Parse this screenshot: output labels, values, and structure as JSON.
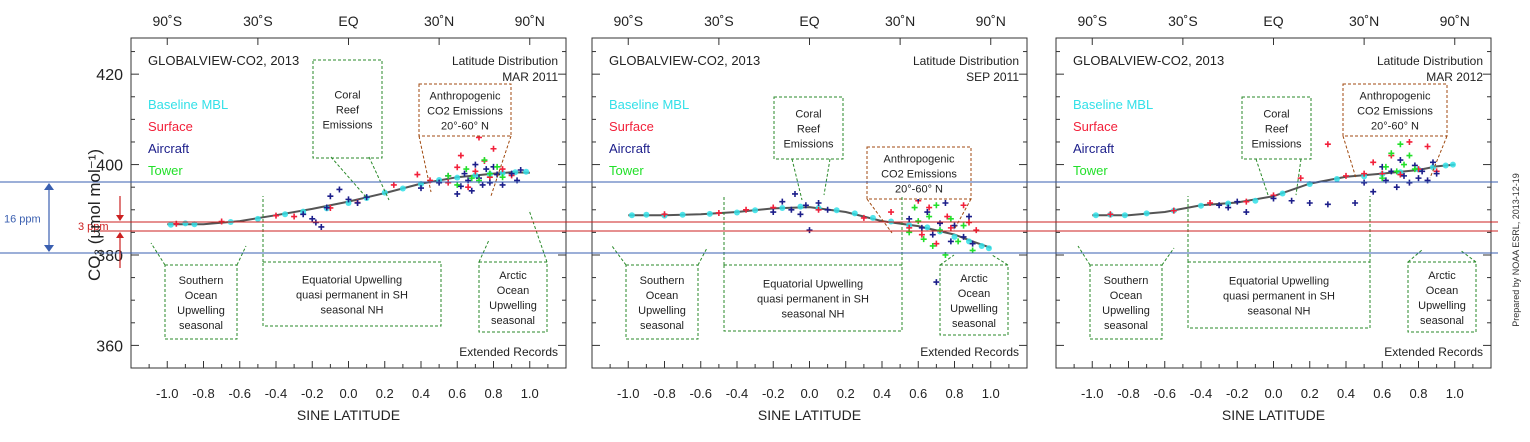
{
  "figure": {
    "ylabel": "CO₂ (µmol mol⁻¹)",
    "credit": "Prepared by NOAA ESRL, 2013-12-19",
    "colors": {
      "baseline": "#33e0e8",
      "surface": "#f2203a",
      "aircraft": "#1c1e8a",
      "tower": "#22e02a",
      "curve": "#555555",
      "green_box": "#2a8a2a",
      "brown_box": "#a04a10",
      "guide_blue": "#3a5fb0",
      "guide_red": "#cc2020"
    },
    "guides": {
      "ppm16": "16 ppm",
      "ppm3": "3 ppm"
    }
  },
  "chart_data": [
    {
      "type": "scatter",
      "title": "GLOBALVIEW-CO2, 2013",
      "dist_title": "Latitude Distribution",
      "month": "MAR 2011",
      "footer": "Extended Records",
      "xlabel": "SINE LATITUDE",
      "xlim": [
        -1.2,
        1.2
      ],
      "ylim": [
        355,
        428
      ],
      "xticks": [
        "-1.0",
        "-0.8",
        "-0.6",
        "-0.4",
        "-0.2",
        "0.0",
        "0.2",
        "0.4",
        "0.6",
        "0.8",
        "1.0"
      ],
      "yticks": [
        "360",
        "380",
        "400",
        "420"
      ],
      "top_ticks": [
        "90˚S",
        "30˚S",
        "EQ",
        "30˚N",
        "90˚N"
      ],
      "legend": [
        "Baseline MBL",
        "Surface",
        "Aircraft",
        "Tower"
      ],
      "curve": {
        "x": [
          -1.0,
          -0.8,
          -0.6,
          -0.4,
          -0.2,
          0.0,
          0.2,
          0.4,
          0.6,
          0.8,
          0.9,
          1.0
        ],
        "y": [
          386.8,
          386.8,
          387.5,
          388.8,
          390.2,
          391.8,
          393.7,
          395.8,
          397.2,
          398.0,
          398.3,
          398.2
        ]
      },
      "series": [
        {
          "name": "Baseline MBL",
          "x": [
            -0.98,
            -0.9,
            -0.85,
            -0.65,
            -0.5,
            -0.35,
            -0.25,
            -0.12,
            0.0,
            0.1,
            0.2,
            0.3,
            0.4,
            0.5,
            0.6,
            0.7,
            0.78,
            0.85,
            0.92,
            0.98
          ],
          "y": [
            386.7,
            387.0,
            386.8,
            387.3,
            388.0,
            389.0,
            389.6,
            390.3,
            391.5,
            392.6,
            393.8,
            394.7,
            395.7,
            396.6,
            397.1,
            397.6,
            397.9,
            398.1,
            398.3,
            398.4
          ]
        },
        {
          "name": "Surface",
          "x": [
            -0.95,
            -0.7,
            -0.4,
            -0.3,
            -0.1,
            0.05,
            0.25,
            0.38,
            0.45,
            0.55,
            0.6,
            0.62,
            0.66,
            0.7,
            0.72,
            0.75,
            0.78,
            0.8,
            0.85,
            0.9
          ],
          "y": [
            386.9,
            387.4,
            388.7,
            388.5,
            390.4,
            391.6,
            395.5,
            397.8,
            396.5,
            396.0,
            399.4,
            402.0,
            395.0,
            398.5,
            406.0,
            400.8,
            397.2,
            403.5,
            399.0,
            397.6
          ]
        },
        {
          "name": "Aircraft",
          "x": [
            -0.25,
            -0.2,
            -0.18,
            -0.15,
            -0.12,
            -0.1,
            -0.05,
            0.0,
            0.05,
            0.1,
            0.4,
            0.5,
            0.55,
            0.6,
            0.62,
            0.64,
            0.66,
            0.68,
            0.7,
            0.72,
            0.74,
            0.76,
            0.78,
            0.8,
            0.82,
            0.85,
            0.9,
            0.93,
            0.95
          ],
          "y": [
            389.0,
            388.0,
            387.2,
            386.2,
            390.5,
            393.0,
            394.5,
            392.3,
            391.5,
            392.8,
            394.8,
            396.0,
            397.5,
            393.5,
            395.2,
            398.0,
            396.5,
            394.2,
            400.0,
            397.0,
            395.5,
            399.0,
            396.0,
            399.5,
            397.8,
            395.5,
            398.0,
            396.5,
            398.8
          ]
        },
        {
          "name": "Tower",
          "x": [
            0.55,
            0.6,
            0.65,
            0.68,
            0.72,
            0.75,
            0.78,
            0.82,
            0.85
          ],
          "y": [
            397.5,
            395.5,
            399.0,
            397.0,
            396.5,
            401.0,
            398.0,
            399.5,
            397.2
          ]
        }
      ],
      "annotations": [
        {
          "id": "coral",
          "lines": [
            "Coral",
            "Reef",
            "Emissions"
          ],
          "color": "green"
        },
        {
          "id": "anthro",
          "lines": [
            "Anthropogenic",
            "CO2 Emissions",
            "20°-60° N"
          ],
          "color": "brown"
        },
        {
          "id": "southern",
          "lines": [
            "Southern",
            "Ocean",
            "Upwelling",
            "seasonal"
          ],
          "color": "green"
        },
        {
          "id": "equatorial",
          "lines": [
            "Equatorial Upwelling",
            "quasi permanent in SH",
            "seasonal NH"
          ],
          "color": "green"
        },
        {
          "id": "arctic",
          "lines": [
            "Arctic",
            "Ocean",
            "Upwelling",
            "seasonal"
          ],
          "color": "green"
        }
      ]
    },
    {
      "type": "scatter",
      "title": "GLOBALVIEW-CO2, 2013",
      "dist_title": "Latitude Distribution",
      "month": "SEP 2011",
      "footer": "Extended Records",
      "xlabel": "SINE LATITUDE",
      "xlim": [
        -1.2,
        1.2
      ],
      "ylim": [
        355,
        428
      ],
      "xticks": [
        "-1.0",
        "-0.8",
        "-0.6",
        "-0.4",
        "-0.2",
        "0.0",
        "0.2",
        "0.4",
        "0.6",
        "0.8",
        "1.0"
      ],
      "yticks": [
        "360",
        "380",
        "400",
        "420"
      ],
      "top_ticks": [
        "90˚S",
        "30˚S",
        "EQ",
        "30˚N",
        "90˚N"
      ],
      "legend": [
        "Baseline MBL",
        "Surface",
        "Aircraft",
        "Tower"
      ],
      "curve": {
        "x": [
          -1.0,
          -0.8,
          -0.6,
          -0.4,
          -0.2,
          0.0,
          0.2,
          0.4,
          0.6,
          0.8,
          0.9,
          1.0
        ],
        "y": [
          388.8,
          388.8,
          389.0,
          389.5,
          390.3,
          390.6,
          389.5,
          387.5,
          386.4,
          384.5,
          383.0,
          381.6
        ]
      },
      "series": [
        {
          "name": "Baseline MBL",
          "x": [
            -0.98,
            -0.9,
            -0.8,
            -0.7,
            -0.55,
            -0.4,
            -0.3,
            -0.15,
            -0.05,
            0.05,
            0.15,
            0.25,
            0.35,
            0.45,
            0.55,
            0.65,
            0.72,
            0.8,
            0.88,
            0.95,
            0.99
          ],
          "y": [
            388.8,
            388.9,
            388.7,
            388.9,
            389.1,
            389.4,
            389.9,
            390.4,
            390.7,
            390.4,
            389.9,
            389.2,
            388.2,
            387.4,
            386.6,
            386.1,
            385.2,
            384.0,
            383.0,
            382.0,
            381.5
          ]
        },
        {
          "name": "Surface",
          "x": [
            -0.8,
            -0.5,
            -0.35,
            -0.2,
            0.05,
            0.3,
            0.45,
            0.55,
            0.6,
            0.62,
            0.66,
            0.7,
            0.72,
            0.76,
            0.78,
            0.8,
            0.85,
            0.88,
            0.92
          ],
          "y": [
            389.0,
            389.3,
            390.0,
            390.5,
            390.0,
            388.2,
            389.5,
            386.0,
            392.0,
            384.5,
            390.5,
            382.5,
            397.5,
            388.5,
            386.0,
            393.5,
            391.0,
            387.2,
            385.5
          ]
        },
        {
          "name": "Aircraft",
          "x": [
            -0.2,
            -0.15,
            -0.1,
            -0.08,
            -0.05,
            -0.02,
            0.0,
            0.05,
            0.1,
            0.55,
            0.6,
            0.62,
            0.65,
            0.68,
            0.7,
            0.72,
            0.75,
            0.78,
            0.8,
            0.85,
            0.88,
            0.9
          ],
          "y": [
            389.5,
            391.8,
            390.0,
            393.5,
            389.0,
            391.0,
            385.5,
            391.5,
            390.0,
            388.0,
            392.5,
            386.0,
            389.5,
            384.5,
            374.0,
            387.0,
            391.5,
            383.0,
            386.5,
            384.0,
            388.5,
            382.5
          ]
        },
        {
          "name": "Tower",
          "x": [
            0.55,
            0.58,
            0.6,
            0.63,
            0.66,
            0.68,
            0.7,
            0.72,
            0.75,
            0.78,
            0.82,
            0.85,
            0.9
          ],
          "y": [
            385.0,
            390.5,
            387.5,
            383.5,
            388.5,
            382.0,
            391.0,
            385.5,
            380.0,
            388.0,
            383.0,
            386.5,
            381.0
          ]
        }
      ],
      "annotations": [
        {
          "id": "coral",
          "lines": [
            "Coral",
            "Reef",
            "Emissions"
          ],
          "color": "green"
        },
        {
          "id": "anthro",
          "lines": [
            "Anthropogenic",
            "CO2 Emissions",
            "20°-60° N"
          ],
          "color": "brown"
        },
        {
          "id": "southern",
          "lines": [
            "Southern",
            "Ocean",
            "Upwelling",
            "seasonal"
          ],
          "color": "green"
        },
        {
          "id": "equatorial",
          "lines": [
            "Equatorial Upwelling",
            "quasi permanent in SH",
            "seasonal NH"
          ],
          "color": "green"
        },
        {
          "id": "arctic",
          "lines": [
            "Arctic",
            "Ocean",
            "Upwelling",
            "seasonal"
          ],
          "color": "green"
        }
      ]
    },
    {
      "type": "scatter",
      "title": "GLOBALVIEW-CO2, 2013",
      "dist_title": "Latitude Distribution",
      "month": "MAR 2012",
      "footer": "Extended Records",
      "xlabel": "SINE LATITUDE",
      "xlim": [
        -1.2,
        1.2
      ],
      "ylim": [
        355,
        428
      ],
      "xticks": [
        "-1.0",
        "-0.8",
        "-0.6",
        "-0.4",
        "-0.2",
        "0.0",
        "0.2",
        "0.4",
        "0.6",
        "0.8",
        "1.0"
      ],
      "yticks": [
        "360",
        "380",
        "400",
        "420"
      ],
      "top_ticks": [
        "90˚S",
        "30˚S",
        "EQ",
        "30˚N",
        "90˚N"
      ],
      "legend": [
        "Baseline MBL",
        "Surface",
        "Aircraft",
        "Tower"
      ],
      "curve": {
        "x": [
          -1.0,
          -0.8,
          -0.6,
          -0.4,
          -0.2,
          0.0,
          0.2,
          0.4,
          0.6,
          0.8,
          0.9,
          1.0
        ],
        "y": [
          388.8,
          388.8,
          389.5,
          391.0,
          391.6,
          393.0,
          395.8,
          397.3,
          398.0,
          398.8,
          399.6,
          400.0
        ]
      },
      "series": [
        {
          "name": "Baseline MBL",
          "x": [
            -0.98,
            -0.9,
            -0.82,
            -0.7,
            -0.55,
            -0.4,
            -0.25,
            -0.1,
            0.05,
            0.2,
            0.35,
            0.5,
            0.6,
            0.7,
            0.8,
            0.88,
            0.95,
            0.99
          ],
          "y": [
            388.8,
            388.9,
            388.8,
            389.2,
            389.8,
            390.9,
            391.4,
            392.0,
            393.6,
            395.7,
            396.8,
            397.4,
            397.9,
            398.3,
            398.9,
            399.4,
            399.8,
            400.0
          ]
        },
        {
          "name": "Surface",
          "x": [
            -0.9,
            -0.55,
            -0.35,
            -0.15,
            0.0,
            0.15,
            0.3,
            0.4,
            0.5,
            0.55,
            0.6,
            0.65,
            0.7,
            0.75,
            0.8,
            0.85,
            0.9
          ],
          "y": [
            389.0,
            389.8,
            391.5,
            391.8,
            393.2,
            397.0,
            404.5,
            397.5,
            398.0,
            400.5,
            398.0,
            402.0,
            397.8,
            405.0,
            399.0,
            404.0,
            398.5
          ]
        },
        {
          "name": "Aircraft",
          "x": [
            -0.3,
            -0.25,
            -0.2,
            -0.15,
            0.0,
            0.1,
            0.2,
            0.3,
            0.45,
            0.5,
            0.55,
            0.6,
            0.62,
            0.65,
            0.68,
            0.7,
            0.72,
            0.75,
            0.78,
            0.8,
            0.82,
            0.85,
            0.88,
            0.9
          ],
          "y": [
            391.0,
            390.5,
            391.8,
            389.5,
            392.5,
            392.0,
            391.5,
            391.2,
            391.5,
            396.0,
            394.0,
            399.5,
            396.5,
            398.5,
            395.0,
            401.0,
            397.5,
            396.0,
            399.8,
            397.0,
            398.5,
            396.5,
            400.5,
            398.0
          ]
        },
        {
          "name": "Tower",
          "x": [
            0.6,
            0.62,
            0.65,
            0.68,
            0.7,
            0.72,
            0.75,
            0.78
          ],
          "y": [
            397.0,
            399.5,
            402.5,
            398.5,
            404.5,
            400.0,
            402.0,
            399.0
          ]
        }
      ],
      "annotations": [
        {
          "id": "coral",
          "lines": [
            "Coral",
            "Reef",
            "Emissions"
          ],
          "color": "green"
        },
        {
          "id": "anthro",
          "lines": [
            "Anthropogenic",
            "CO2 Emissions",
            "20°-60° N"
          ],
          "color": "brown"
        },
        {
          "id": "southern",
          "lines": [
            "Southern",
            "Ocean",
            "Upwelling",
            "seasonal"
          ],
          "color": "green"
        },
        {
          "id": "equatorial",
          "lines": [
            "Equatorial Upwelling",
            "quasi permanent in SH",
            "seasonal NH"
          ],
          "color": "green"
        },
        {
          "id": "arctic",
          "lines": [
            "Arctic",
            "Ocean",
            "Upwelling",
            "seasonal"
          ],
          "color": "green"
        }
      ]
    }
  ]
}
